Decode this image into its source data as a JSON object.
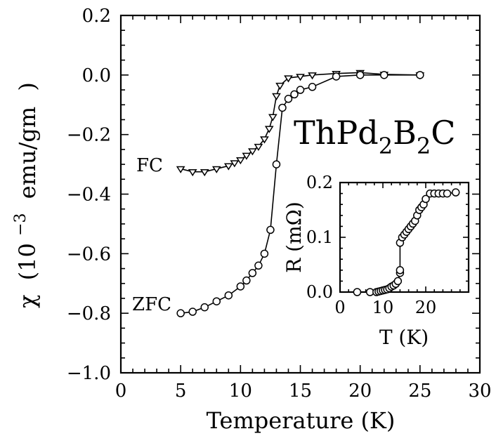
{
  "chart_data": [
    {
      "type": "line",
      "title": "",
      "xlabel": "Temperature (K)",
      "ylabel_parts": {
        "chi": "χ",
        "open": "(10",
        "exp": "−3",
        "unit": "emu/gm",
        "close": ")"
      },
      "xlim": [
        0,
        30
      ],
      "ylim": [
        -1.0,
        0.2
      ],
      "xticks": [
        0,
        5,
        10,
        15,
        20,
        25,
        30
      ],
      "yticks": [
        0.2,
        0.0,
        -0.2,
        -0.4,
        -0.6,
        -0.8,
        -1.0
      ],
      "xtick_labels": [
        "0",
        "5",
        "10",
        "15",
        "20",
        "25",
        "30"
      ],
      "ytick_labels": [
        "0.2",
        "0.0",
        "−0.2",
        "−0.4",
        "−0.6",
        "−0.8",
        "−1.0"
      ],
      "annotation": {
        "base": "ThPd",
        "sub1": "2",
        "mid": "B",
        "sub2": "2",
        "end": "C"
      },
      "series": [
        {
          "name": "FC",
          "marker": "triangle-down",
          "x": [
            5.0,
            6.0,
            7.0,
            8.0,
            9.0,
            9.5,
            10.0,
            10.5,
            11.0,
            11.5,
            12.0,
            12.4,
            12.7,
            13.0,
            13.3,
            14.0,
            15.0,
            16.0,
            18.0,
            20.0,
            22.0,
            25.0
          ],
          "y": [
            -0.315,
            -0.325,
            -0.325,
            -0.315,
            -0.305,
            -0.295,
            -0.285,
            -0.27,
            -0.255,
            -0.24,
            -0.215,
            -0.18,
            -0.14,
            -0.07,
            -0.035,
            -0.01,
            -0.005,
            0.0,
            0.005,
            0.008,
            0.002,
            0.0
          ]
        },
        {
          "name": "ZFC",
          "marker": "circle",
          "x": [
            5.0,
            6.0,
            7.0,
            8.0,
            9.0,
            10.0,
            10.5,
            11.0,
            11.5,
            12.0,
            12.5,
            13.0,
            13.5,
            14.0,
            14.5,
            15.0,
            16.0,
            18.0,
            20.0,
            22.0,
            25.0
          ],
          "y": [
            -0.8,
            -0.795,
            -0.78,
            -0.76,
            -0.74,
            -0.71,
            -0.69,
            -0.665,
            -0.64,
            -0.6,
            -0.52,
            -0.3,
            -0.11,
            -0.08,
            -0.065,
            -0.05,
            -0.04,
            -0.005,
            0.0,
            0.0,
            0.0
          ]
        }
      ]
    },
    {
      "type": "scatter",
      "title": "",
      "xlabel": "T (K)",
      "ylabel": "R (mΩ)",
      "xlim": [
        0,
        30
      ],
      "ylim": [
        0.0,
        0.2
      ],
      "xticks": [
        0,
        10,
        20
      ],
      "yticks": [
        0.0,
        0.1,
        0.2
      ],
      "xtick_labels": [
        "0",
        "10",
        "20"
      ],
      "ytick_labels": [
        "0.0",
        "0.1",
        "0.2"
      ],
      "series": [
        {
          "marker": "circle",
          "x": [
            4.0,
            7.0,
            8.5,
            9.0,
            9.5,
            10.0,
            10.5,
            11.0,
            11.5,
            12.0,
            12.5,
            13.0,
            13.5,
            14.0,
            14.0,
            14.0,
            14.5,
            15.0,
            15.5,
            16.0,
            16.5,
            17.0,
            17.5,
            18.0,
            18.5,
            19.0,
            19.5,
            20.0,
            21.0,
            22.0,
            23.0,
            24.0,
            25.0,
            27.0
          ],
          "y": [
            0.0,
            0.0,
            0.0,
            0.001,
            0.002,
            0.003,
            0.004,
            0.005,
            0.007,
            0.01,
            0.012,
            0.015,
            0.02,
            0.035,
            0.04,
            0.09,
            0.1,
            0.105,
            0.11,
            0.115,
            0.12,
            0.125,
            0.13,
            0.14,
            0.15,
            0.155,
            0.16,
            0.17,
            0.18,
            0.18,
            0.18,
            0.18,
            0.18,
            0.182
          ]
        }
      ]
    }
  ]
}
